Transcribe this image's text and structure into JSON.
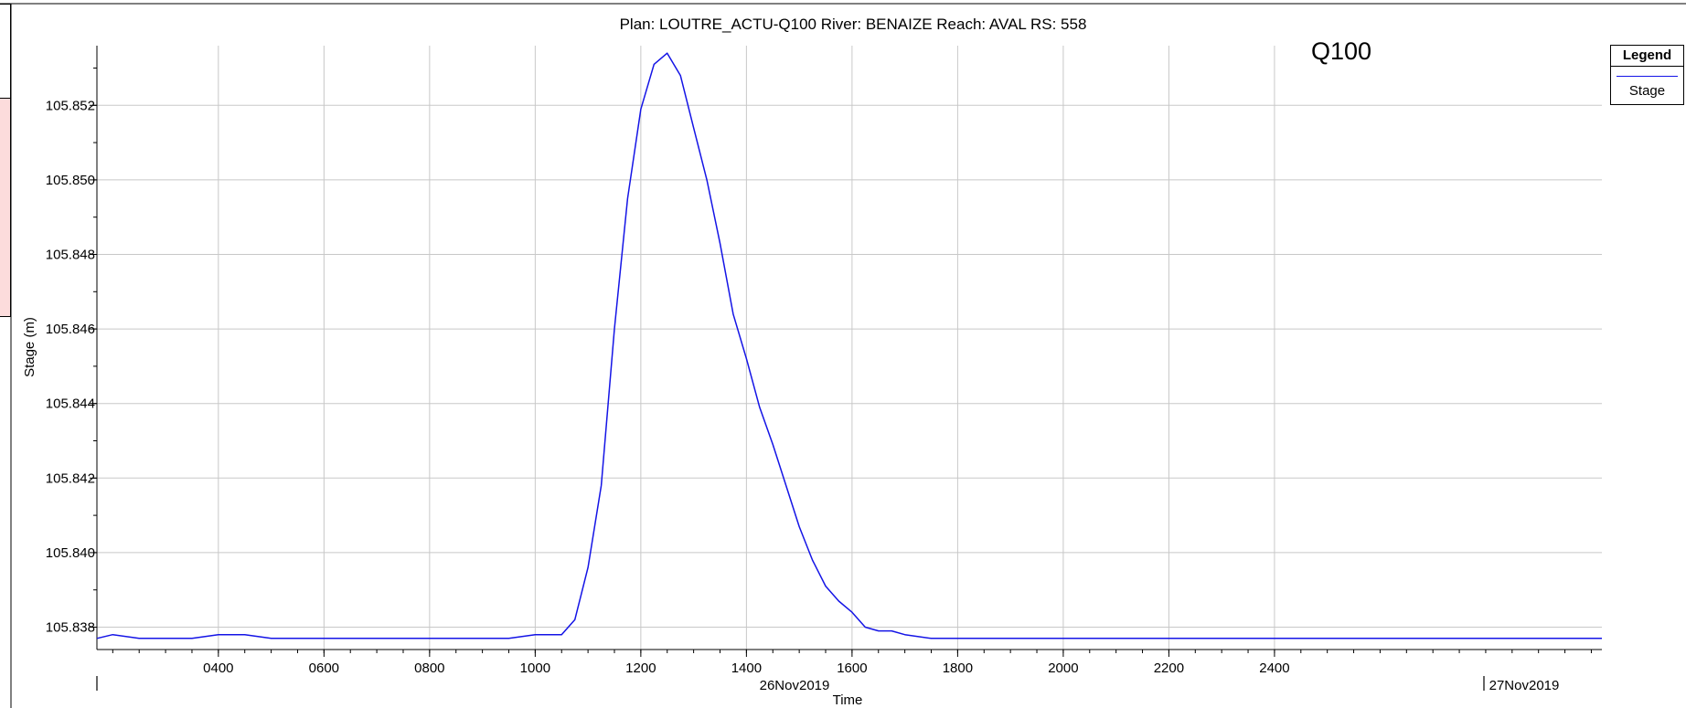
{
  "chart_data": {
    "type": "line",
    "title": "Plan: LOUTRE_ACTU-Q100   River: BENAIZE   Reach: AVAL   RS: 558",
    "annotation": "Q100",
    "xlabel": "Time",
    "ylabel": "Stage (m)",
    "x_unit": "hour of day (hhmm), 26Nov2019 to 27Nov2019",
    "xlim": [
      1.7,
      30.2
    ],
    "ylim": [
      105.8374,
      105.8536
    ],
    "x_tick_values": [
      4,
      6,
      8,
      10,
      12,
      14,
      16,
      18,
      20,
      22,
      24
    ],
    "x_tick_labels": [
      "0400",
      "0600",
      "0800",
      "1000",
      "1200",
      "1400",
      "1600",
      "1800",
      "2000",
      "2200",
      "2400"
    ],
    "y_tick_values": [
      105.838,
      105.84,
      105.842,
      105.844,
      105.846,
      105.848,
      105.85,
      105.852
    ],
    "y_tick_labels": [
      "105.838",
      "105.840",
      "105.842",
      "105.844",
      "105.846",
      "105.848",
      "105.850",
      "105.852"
    ],
    "date_labels": [
      "26Nov2019",
      "27Nov2019"
    ],
    "grid": true,
    "legend": {
      "title": "Legend",
      "position": "top-right"
    },
    "series": [
      {
        "name": "Stage",
        "color": "#1414e6",
        "x": [
          1.7,
          2.0,
          2.5,
          3.0,
          3.5,
          4.0,
          4.5,
          5.0,
          5.5,
          6.0,
          6.5,
          7.0,
          7.5,
          8.0,
          8.5,
          9.0,
          9.5,
          10.0,
          10.25,
          10.5,
          10.75,
          11.0,
          11.25,
          11.5,
          11.75,
          12.0,
          12.25,
          12.5,
          12.75,
          13.0,
          13.25,
          13.5,
          13.75,
          14.0,
          14.25,
          14.5,
          14.75,
          15.0,
          15.25,
          15.5,
          15.75,
          16.0,
          16.25,
          16.5,
          16.75,
          17.0,
          17.5,
          18.0,
          18.5,
          19.0,
          19.5,
          20.0,
          20.5,
          21.0,
          21.5,
          22.0,
          22.5,
          23.0,
          23.5,
          24.0,
          24.5,
          25.0,
          25.5,
          26.0,
          26.5,
          27.0,
          27.5,
          28.0,
          28.5,
          29.0,
          29.5,
          30.2
        ],
        "y": [
          105.8377,
          105.8378,
          105.8377,
          105.8377,
          105.8377,
          105.8378,
          105.8378,
          105.8377,
          105.8377,
          105.8377,
          105.8377,
          105.8377,
          105.8377,
          105.8377,
          105.8377,
          105.8377,
          105.8377,
          105.8378,
          105.8378,
          105.8378,
          105.8382,
          105.8396,
          105.8418,
          105.846,
          105.8495,
          105.8519,
          105.8531,
          105.8534,
          105.8528,
          105.8514,
          105.85,
          105.8483,
          105.8464,
          105.8452,
          105.8439,
          105.8429,
          105.8418,
          105.8407,
          105.8398,
          105.8391,
          105.8387,
          105.8384,
          105.838,
          105.8379,
          105.8379,
          105.8378,
          105.8377,
          105.8377,
          105.8377,
          105.8377,
          105.8377,
          105.8377,
          105.8377,
          105.8377,
          105.8377,
          105.8377,
          105.8377,
          105.8377,
          105.8377,
          105.8377,
          105.8377,
          105.8377,
          105.8377,
          105.8377,
          105.8377,
          105.8377,
          105.8377,
          105.8377,
          105.8377,
          105.8377,
          105.8377,
          105.8377
        ]
      }
    ]
  }
}
